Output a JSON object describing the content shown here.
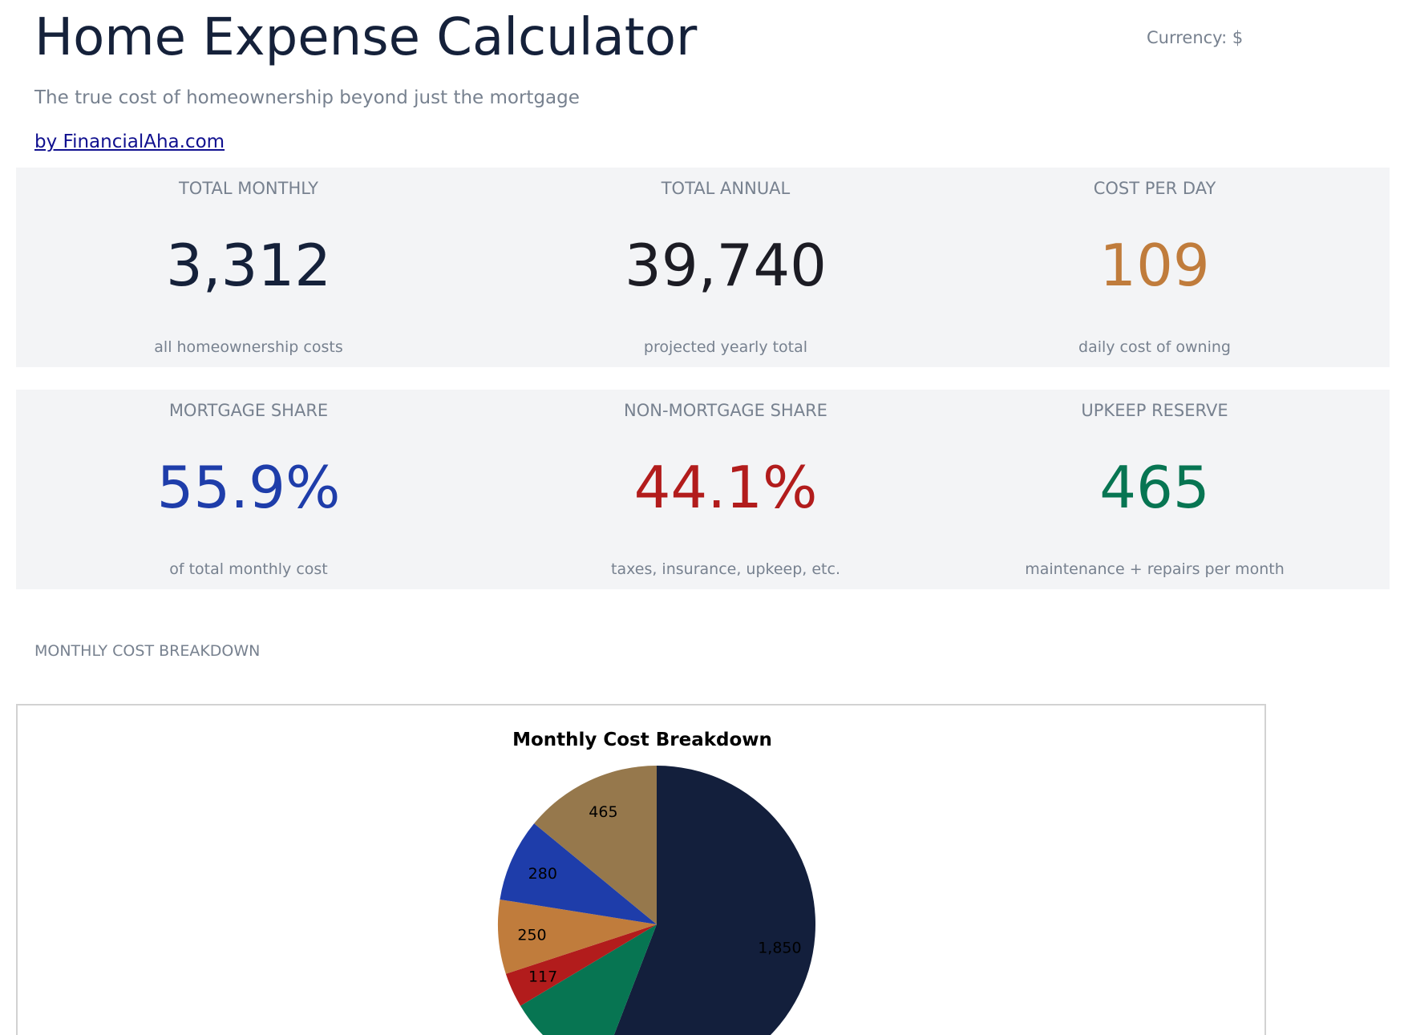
{
  "header": {
    "title": "Home Expense Calculator",
    "subtitle": "The true cost of homeownership beyond just the mortgage",
    "byline": "by FinancialAha.com",
    "currency": "Currency: $"
  },
  "stats": [
    {
      "label": "TOTAL MONTHLY",
      "value": "3,312",
      "sub": "all homeownership costs",
      "color": "#15213a"
    },
    {
      "label": "TOTAL ANNUAL",
      "value": "39,740",
      "sub": "projected yearly total",
      "color": "#1c1c24"
    },
    {
      "label": "COST PER DAY",
      "value": "109",
      "sub": "daily cost of owning",
      "color": "#c07c3c"
    },
    {
      "label": "MORTGAGE SHARE",
      "value": "55.9%",
      "sub": "of total monthly cost",
      "color": "#1e3daa"
    },
    {
      "label": "NON-MORTGAGE SHARE",
      "value": "44.1%",
      "sub": "taxes, insurance, upkeep, etc.",
      "color": "#b21c1c"
    },
    {
      "label": "UPKEEP RESERVE",
      "value": "465",
      "sub": "maintenance + repairs per month",
      "color": "#077552"
    }
  ],
  "section": {
    "label": "MONTHLY COST BREAKDOWN"
  },
  "chart_data": {
    "type": "pie",
    "title": "Monthly Cost Breakdown",
    "values": [
      1850,
      350,
      117,
      250,
      280,
      465
    ],
    "labels": [
      "1,850",
      "",
      "117",
      "250",
      "280",
      "465"
    ],
    "colors": [
      "#131f3c",
      "#077552",
      "#b21c1c",
      "#c07c3c",
      "#1e3daa",
      "#96784c"
    ]
  }
}
